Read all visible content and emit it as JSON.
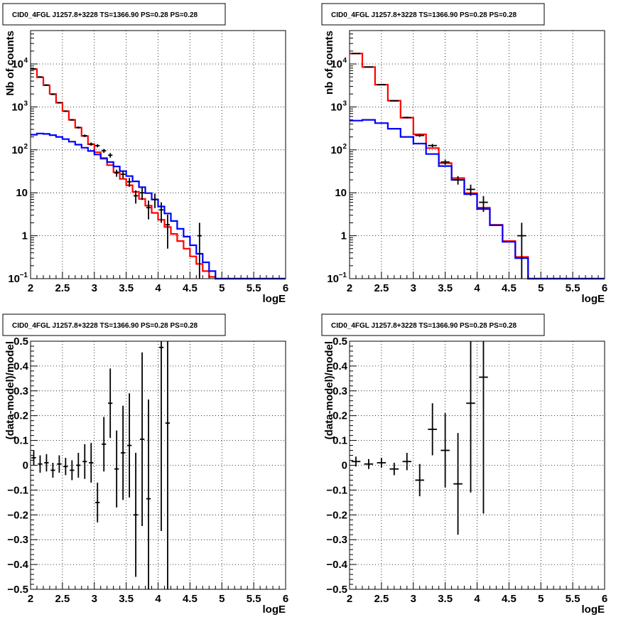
{
  "chart_data": [
    {
      "type": "line",
      "title": "CID0_4FGL J1257.8+3228 TS=1366.90 PS=0.28 PS=0.28",
      "xlabel": "logE",
      "ylabel": "Nb of counts",
      "xlim": [
        2,
        6
      ],
      "ylim": [
        0.1,
        60000
      ],
      "log_y": true,
      "grid": true,
      "x_ticks": [
        "2",
        "2.5",
        "3",
        "3.5",
        "4",
        "4.5",
        "5",
        "5.5",
        "6"
      ],
      "y_ticks": [
        {
          "value": 0.1,
          "label": "10",
          "sup": "−1"
        },
        {
          "value": 1,
          "label": "1",
          "sup": ""
        },
        {
          "value": 10,
          "label": "10",
          "sup": ""
        },
        {
          "value": 100,
          "label": "10",
          "sup": "2"
        },
        {
          "value": 1000,
          "label": "10",
          "sup": "3"
        },
        {
          "value": 10000,
          "label": "10",
          "sup": "4"
        }
      ],
      "bin_edges": [
        2.0,
        2.1,
        2.2,
        2.3,
        2.4,
        2.5,
        2.6,
        2.7,
        2.8,
        2.9,
        3.0,
        3.1,
        3.2,
        3.3,
        3.4,
        3.5,
        3.6,
        3.7,
        3.8,
        3.9,
        4.0,
        4.1,
        4.2,
        4.3,
        4.4,
        4.5,
        4.6,
        4.7,
        4.8,
        4.9,
        5.0,
        5.1,
        5.2,
        5.3,
        5.4,
        5.5,
        5.6,
        5.7,
        5.8,
        5.9,
        6.0
      ],
      "series": [
        {
          "color": "#ff0000",
          "values": [
            7600,
            4900,
            3200,
            2000,
            1250,
            800,
            500,
            330,
            210,
            135,
            88,
            62,
            44,
            30,
            21,
            15,
            10.5,
            7.2,
            5,
            3.4,
            2.35,
            1.6,
            1.1,
            0.75,
            0.5,
            0.33,
            0.22,
            0.15,
            0.11,
            0.1,
            0.1,
            0.1,
            0.1,
            0.1,
            0.1,
            0.1,
            0.1,
            0.1,
            0.1,
            0.1
          ]
        },
        {
          "color": "#0000ff",
          "values": [
            225,
            240,
            235,
            220,
            200,
            178,
            155,
            132,
            112,
            94,
            78,
            64,
            52,
            41,
            32,
            24.5,
            18.5,
            13.5,
            9.8,
            7.0,
            4.8,
            3.3,
            2.2,
            1.45,
            0.95,
            0.6,
            0.38,
            0.24,
            0.15,
            0.1,
            0.1,
            0.1,
            0.1,
            0.1,
            0.1,
            0.1,
            0.1,
            0.1,
            0.1,
            0.1
          ]
        }
      ],
      "points": [
        {
          "x": 2.05,
          "y": 7700,
          "dy": 90
        },
        {
          "x": 2.15,
          "y": 5000,
          "dy": 70
        },
        {
          "x": 2.25,
          "y": 3230,
          "dy": 57
        },
        {
          "x": 2.35,
          "y": 1960,
          "dy": 44
        },
        {
          "x": 2.45,
          "y": 1250,
          "dy": 35
        },
        {
          "x": 2.55,
          "y": 795,
          "dy": 28
        },
        {
          "x": 2.65,
          "y": 499,
          "dy": 22
        },
        {
          "x": 2.75,
          "y": 331,
          "dy": 18
        },
        {
          "x": 2.85,
          "y": 213,
          "dy": 15
        },
        {
          "x": 2.95,
          "y": 136,
          "dy": 12
        },
        {
          "x": 3.05,
          "y": 125,
          "dy": 11
        },
        {
          "x": 3.15,
          "y": 95,
          "dy": 10
        },
        {
          "x": 3.25,
          "y": 75,
          "dy": 9
        },
        {
          "x": 3.35,
          "y": 29,
          "dy": 5.4
        },
        {
          "x": 3.45,
          "y": 27,
          "dy": 5.2
        },
        {
          "x": 3.55,
          "y": 18,
          "dy": 4.2
        },
        {
          "x": 3.65,
          "y": 8.5,
          "dy": 2.9
        },
        {
          "x": 3.75,
          "y": 10,
          "dy": 3.2
        },
        {
          "x": 3.85,
          "y": 4.5,
          "dy": 2.1
        },
        {
          "x": 3.95,
          "y": 7,
          "dy": 2.6
        },
        {
          "x": 4.05,
          "y": 4,
          "dy": 2.0
        },
        {
          "x": 4.15,
          "y": 1.8,
          "dy": 1.3
        },
        {
          "x": 4.65,
          "y": 1,
          "dy": 1.0
        }
      ]
    },
    {
      "type": "line",
      "title": "CID0_4FGL J1257.8+3228 TS=1366.90 PS=0.28 PS=0.28",
      "xlabel": "logE",
      "ylabel": "nb of counts",
      "xlim": [
        2,
        6
      ],
      "ylim": [
        0.1,
        60000
      ],
      "log_y": true,
      "grid": true,
      "x_ticks": [
        "2",
        "2.5",
        "3",
        "3.5",
        "4",
        "4.5",
        "5",
        "5.5",
        "6"
      ],
      "y_ticks": [
        {
          "value": 0.1,
          "label": "10",
          "sup": "−1"
        },
        {
          "value": 1,
          "label": "1",
          "sup": ""
        },
        {
          "value": 10,
          "label": "10",
          "sup": ""
        },
        {
          "value": 100,
          "label": "10",
          "sup": "2"
        },
        {
          "value": 1000,
          "label": "10",
          "sup": "3"
        },
        {
          "value": 10000,
          "label": "10",
          "sup": "4"
        }
      ],
      "bin_edges": [
        2.0,
        2.2,
        2.4,
        2.6,
        2.8,
        3.0,
        3.2,
        3.4,
        3.6,
        3.8,
        4.0,
        4.2,
        4.4,
        4.6,
        4.8,
        5.0,
        5.2,
        5.4,
        5.6,
        5.8,
        6.0
      ],
      "series": [
        {
          "color": "#ff0000",
          "values": [
            17500,
            8500,
            3300,
            1400,
            560,
            230,
            110,
            49,
            22,
            9.8,
            4.5,
            1.8,
            0.75,
            0.32,
            0.1,
            0.1,
            0.1,
            0.1,
            0.1,
            0.1
          ]
        },
        {
          "color": "#0000ff",
          "values": [
            480,
            500,
            420,
            310,
            200,
            140,
            80,
            42,
            20,
            9.3,
            4.2,
            1.75,
            0.72,
            0.3,
            0.1,
            0.1,
            0.1,
            0.1,
            0.1,
            0.1
          ]
        }
      ],
      "points": [
        {
          "x": 2.1,
          "y": 17500,
          "dy": 132
        },
        {
          "x": 2.3,
          "y": 8500,
          "dy": 92
        },
        {
          "x": 2.5,
          "y": 3300,
          "dy": 57
        },
        {
          "x": 2.7,
          "y": 1380,
          "dy": 37
        },
        {
          "x": 2.9,
          "y": 567,
          "dy": 24
        },
        {
          "x": 3.1,
          "y": 216,
          "dy": 15
        },
        {
          "x": 3.3,
          "y": 126,
          "dy": 11
        },
        {
          "x": 3.5,
          "y": 52,
          "dy": 7.2
        },
        {
          "x": 3.7,
          "y": 20,
          "dy": 4.5
        },
        {
          "x": 3.9,
          "y": 12,
          "dy": 3.5
        },
        {
          "x": 4.1,
          "y": 6,
          "dy": 2.4
        },
        {
          "x": 4.7,
          "y": 1,
          "dy": 1.0
        }
      ]
    },
    {
      "type": "scatter",
      "title": "CID0_4FGL J1257.8+3228 TS=1366.90 PS=0.28 PS=0.28",
      "xlabel": "logE",
      "ylabel": "(data-model)/model",
      "xlim": [
        2,
        6
      ],
      "ylim": [
        -0.5,
        0.5
      ],
      "grid": true,
      "x_ticks": [
        "2",
        "2.5",
        "3",
        "3.5",
        "4",
        "4.5",
        "5",
        "5.5",
        "6"
      ],
      "y_ticks": [
        "−0.5",
        "−0.4",
        "−0.3",
        "−0.2",
        "−0.1",
        "0",
        "0.1",
        "0.2",
        "0.3",
        "0.4",
        "0.5"
      ],
      "points": [
        {
          "x": 2.05,
          "y": 0.03,
          "dy": 0.03
        },
        {
          "x": 2.15,
          "y": 0.005,
          "dy": 0.035
        },
        {
          "x": 2.25,
          "y": 0.01,
          "dy": 0.035
        },
        {
          "x": 2.35,
          "y": -0.02,
          "dy": 0.03
        },
        {
          "x": 2.45,
          "y": 0.005,
          "dy": 0.035
        },
        {
          "x": 2.55,
          "y": -0.005,
          "dy": 0.035
        },
        {
          "x": 2.65,
          "y": -0.02,
          "dy": 0.04
        },
        {
          "x": 2.75,
          "y": 0.0,
          "dy": 0.05
        },
        {
          "x": 2.85,
          "y": 0.015,
          "dy": 0.07
        },
        {
          "x": 2.95,
          "y": 0.01,
          "dy": 0.08
        },
        {
          "x": 3.05,
          "y": -0.15,
          "dy": 0.08
        },
        {
          "x": 3.15,
          "y": 0.085,
          "dy": 0.11
        },
        {
          "x": 3.25,
          "y": 0.25,
          "dy": 0.14
        },
        {
          "x": 3.35,
          "y": -0.015,
          "dy": 0.155
        },
        {
          "x": 3.45,
          "y": 0.05,
          "dy": 0.19
        },
        {
          "x": 3.55,
          "y": 0.08,
          "dy": 0.21
        },
        {
          "x": 3.65,
          "y": -0.2,
          "dy": 0.25
        },
        {
          "x": 3.75,
          "y": 0.105,
          "dy": 0.35
        },
        {
          "x": 3.85,
          "y": -0.135,
          "dy": 0.4
        },
        {
          "x": 4.05,
          "y": 0.475,
          "dy": 0.74
        },
        {
          "x": 4.15,
          "y": 0.17,
          "dy": 0.9
        }
      ]
    },
    {
      "type": "scatter",
      "title": "CID0_4FGL J1257.8+3228 TS=1366.90 PS=0.28 PS=0.28",
      "xlabel": "logE",
      "ylabel": "(data-model)/model",
      "xlim": [
        2,
        6
      ],
      "ylim": [
        -0.5,
        0.5
      ],
      "grid": true,
      "x_ticks": [
        "2",
        "2.5",
        "3",
        "3.5",
        "4",
        "4.5",
        "5",
        "5.5",
        "6"
      ],
      "y_ticks": [
        "−0.5",
        "−0.4",
        "−0.3",
        "−0.2",
        "−0.1",
        "0",
        "0.1",
        "0.2",
        "0.3",
        "0.4",
        "0.5"
      ],
      "points": [
        {
          "x": 2.1,
          "y": 0.015,
          "dy": 0.02
        },
        {
          "x": 2.3,
          "y": 0.005,
          "dy": 0.02
        },
        {
          "x": 2.5,
          "y": 0.01,
          "dy": 0.02
        },
        {
          "x": 2.7,
          "y": -0.015,
          "dy": 0.025
        },
        {
          "x": 2.9,
          "y": 0.015,
          "dy": 0.035
        },
        {
          "x": 3.1,
          "y": -0.06,
          "dy": 0.065
        },
        {
          "x": 3.3,
          "y": 0.145,
          "dy": 0.105
        },
        {
          "x": 3.5,
          "y": 0.06,
          "dy": 0.15
        },
        {
          "x": 3.7,
          "y": -0.075,
          "dy": 0.205
        },
        {
          "x": 3.9,
          "y": 0.25,
          "dy": 0.36
        },
        {
          "x": 4.1,
          "y": 0.355,
          "dy": 0.55
        }
      ]
    }
  ]
}
